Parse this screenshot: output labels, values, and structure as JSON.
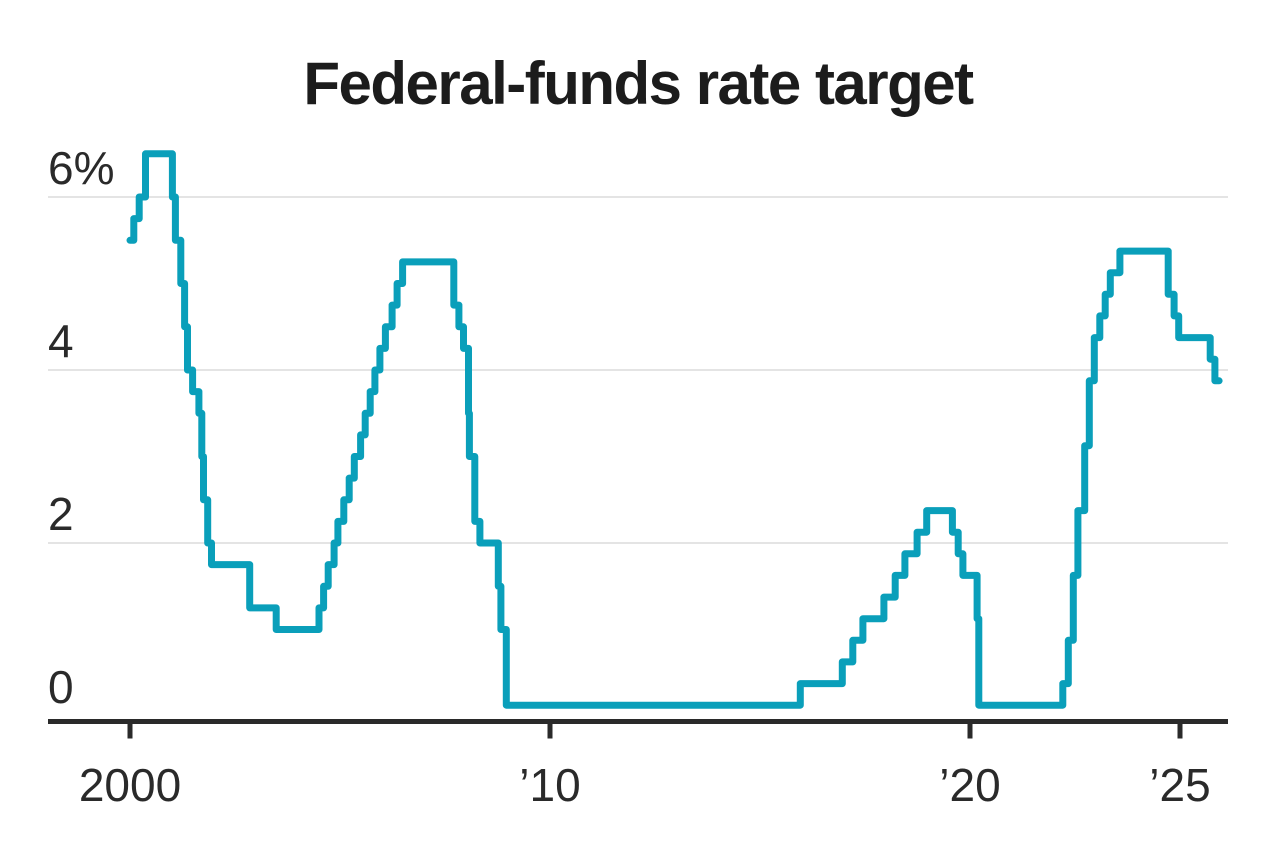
{
  "title": "Federal-funds rate target",
  "colors": {
    "line": "#0a9fba",
    "axis": "#2a2a2a",
    "grid": "#e4e4e4",
    "title_text": "#1c1c1c",
    "tick_text": "#2a2a2a",
    "background": "#ffffff"
  },
  "chart_data": {
    "type": "line",
    "step": true,
    "title": "Federal-funds rate target",
    "xlabel": "",
    "ylabel": "",
    "unit": "%",
    "ylim": [
      0,
      6.5
    ],
    "xlim": [
      2000,
      2026
    ],
    "grid": "horizontal",
    "legend": "none",
    "yticks": [
      {
        "value": 6,
        "label": "6%"
      },
      {
        "value": 4,
        "label": "4"
      },
      {
        "value": 2,
        "label": "2"
      },
      {
        "value": 0,
        "label": "0"
      }
    ],
    "xticks": [
      {
        "value": 2000,
        "label": "2000"
      },
      {
        "value": 2010,
        "label": "’10"
      },
      {
        "value": 2020,
        "label": "’20"
      },
      {
        "value": 2025,
        "label": "’25"
      }
    ],
    "series": [
      {
        "name": "Federal-funds rate target (%)",
        "points": [
          [
            2000.0,
            5.5
          ],
          [
            2000.09,
            5.75
          ],
          [
            2000.22,
            6.0
          ],
          [
            2000.37,
            6.5
          ],
          [
            2001.01,
            6.0
          ],
          [
            2001.08,
            5.5
          ],
          [
            2001.21,
            5.0
          ],
          [
            2001.3,
            4.5
          ],
          [
            2001.37,
            4.0
          ],
          [
            2001.49,
            3.75
          ],
          [
            2001.64,
            3.5
          ],
          [
            2001.71,
            3.0
          ],
          [
            2001.75,
            2.5
          ],
          [
            2001.85,
            2.0
          ],
          [
            2001.94,
            1.75
          ],
          [
            2002.85,
            1.25
          ],
          [
            2003.48,
            1.0
          ],
          [
            2004.5,
            1.25
          ],
          [
            2004.61,
            1.5
          ],
          [
            2004.72,
            1.75
          ],
          [
            2004.86,
            2.0
          ],
          [
            2004.95,
            2.25
          ],
          [
            2005.09,
            2.5
          ],
          [
            2005.22,
            2.75
          ],
          [
            2005.34,
            3.0
          ],
          [
            2005.49,
            3.25
          ],
          [
            2005.6,
            3.5
          ],
          [
            2005.72,
            3.75
          ],
          [
            2005.83,
            4.0
          ],
          [
            2005.95,
            4.25
          ],
          [
            2006.08,
            4.5
          ],
          [
            2006.24,
            4.75
          ],
          [
            2006.36,
            5.0
          ],
          [
            2006.49,
            5.25
          ],
          [
            2007.71,
            4.75
          ],
          [
            2007.83,
            4.5
          ],
          [
            2007.94,
            4.25
          ],
          [
            2008.06,
            3.5
          ],
          [
            2008.08,
            3.0
          ],
          [
            2008.21,
            2.25
          ],
          [
            2008.33,
            2.0
          ],
          [
            2008.77,
            1.5
          ],
          [
            2008.83,
            1.0
          ],
          [
            2008.96,
            0.125
          ],
          [
            2015.96,
            0.375
          ],
          [
            2016.96,
            0.625
          ],
          [
            2017.21,
            0.875
          ],
          [
            2017.45,
            1.125
          ],
          [
            2017.95,
            1.375
          ],
          [
            2018.22,
            1.625
          ],
          [
            2018.45,
            1.875
          ],
          [
            2018.74,
            2.125
          ],
          [
            2018.97,
            2.375
          ],
          [
            2019.58,
            2.125
          ],
          [
            2019.72,
            1.875
          ],
          [
            2019.83,
            1.625
          ],
          [
            2020.17,
            1.125
          ],
          [
            2020.21,
            0.125
          ],
          [
            2022.21,
            0.375
          ],
          [
            2022.34,
            0.875
          ],
          [
            2022.46,
            1.625
          ],
          [
            2022.57,
            2.375
          ],
          [
            2022.73,
            3.125
          ],
          [
            2022.84,
            3.875
          ],
          [
            2022.96,
            4.375
          ],
          [
            2023.09,
            4.625
          ],
          [
            2023.22,
            4.875
          ],
          [
            2023.34,
            5.125
          ],
          [
            2023.57,
            5.375
          ],
          [
            2024.72,
            4.875
          ],
          [
            2024.86,
            4.625
          ],
          [
            2024.97,
            4.375
          ],
          [
            2025.72,
            4.125
          ],
          [
            2025.83,
            3.875
          ],
          [
            2025.93,
            3.875
          ]
        ]
      }
    ]
  }
}
